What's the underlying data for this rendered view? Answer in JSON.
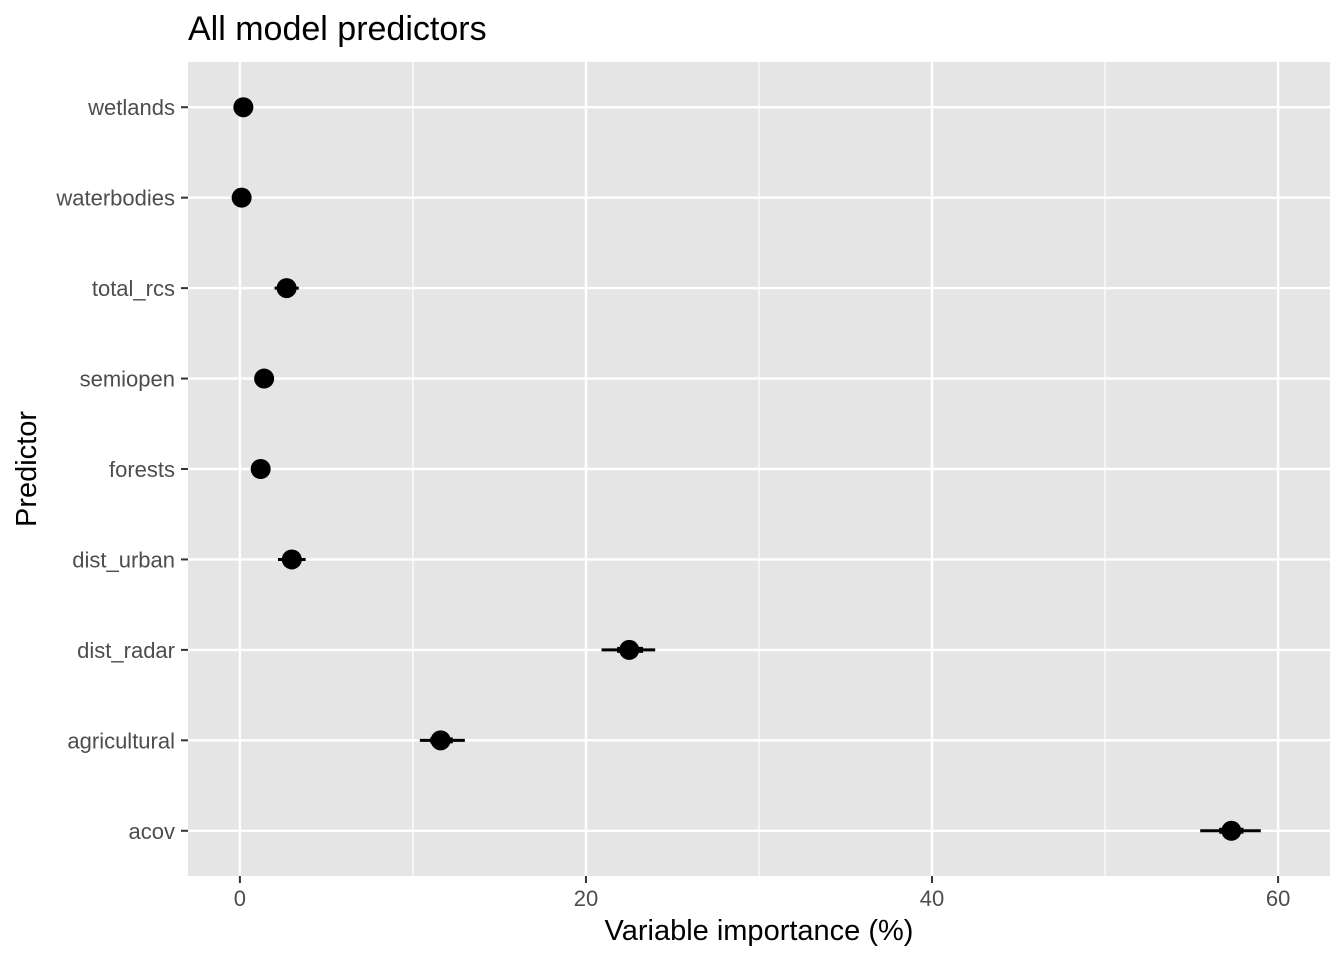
{
  "chart_data": {
    "type": "scatter",
    "title": "All model predictors",
    "xlabel": "Variable importance (%)",
    "ylabel": "Predictor",
    "xlim": [
      -3,
      63
    ],
    "x_ticks": [
      0,
      20,
      40,
      60
    ],
    "x_tick_labels": [
      "0",
      "20",
      "40",
      "60"
    ],
    "grid": true,
    "panel_background": "#e5e5e5",
    "grid_color": "#ffffff",
    "point_color": "#000000",
    "interval_color": "#000000",
    "categories": [
      "wetlands",
      "waterbodies",
      "total_rcs",
      "semiopen",
      "forests",
      "dist_urban",
      "dist_radar",
      "agricultural",
      "acov"
    ],
    "points": [
      {
        "predictor": "wetlands",
        "importance": 0.2,
        "thick": [
          0.1,
          0.3
        ],
        "thin": [
          0.05,
          0.4
        ]
      },
      {
        "predictor": "waterbodies",
        "importance": 0.1,
        "thick": [
          0.05,
          0.2
        ],
        "thin": [
          0.0,
          0.3
        ]
      },
      {
        "predictor": "total_rcs",
        "importance": 2.7,
        "thick": [
          2.3,
          3.1
        ],
        "thin": [
          2.0,
          3.4
        ]
      },
      {
        "predictor": "semiopen",
        "importance": 1.4,
        "thick": [
          1.1,
          1.7
        ],
        "thin": [
          0.9,
          1.9
        ]
      },
      {
        "predictor": "forests",
        "importance": 1.2,
        "thick": [
          1.0,
          1.4
        ],
        "thin": [
          0.8,
          1.6
        ]
      },
      {
        "predictor": "dist_urban",
        "importance": 3.0,
        "thick": [
          2.6,
          3.4
        ],
        "thin": [
          2.2,
          3.8
        ]
      },
      {
        "predictor": "dist_radar",
        "importance": 22.5,
        "thick": [
          21.8,
          23.3
        ],
        "thin": [
          20.9,
          24.0
        ]
      },
      {
        "predictor": "agricultural",
        "importance": 11.6,
        "thick": [
          11.0,
          12.3
        ],
        "thin": [
          10.4,
          13.0
        ]
      },
      {
        "predictor": "acov",
        "importance": 57.3,
        "thick": [
          56.6,
          58.0
        ],
        "thin": [
          55.5,
          59.0
        ]
      }
    ]
  }
}
